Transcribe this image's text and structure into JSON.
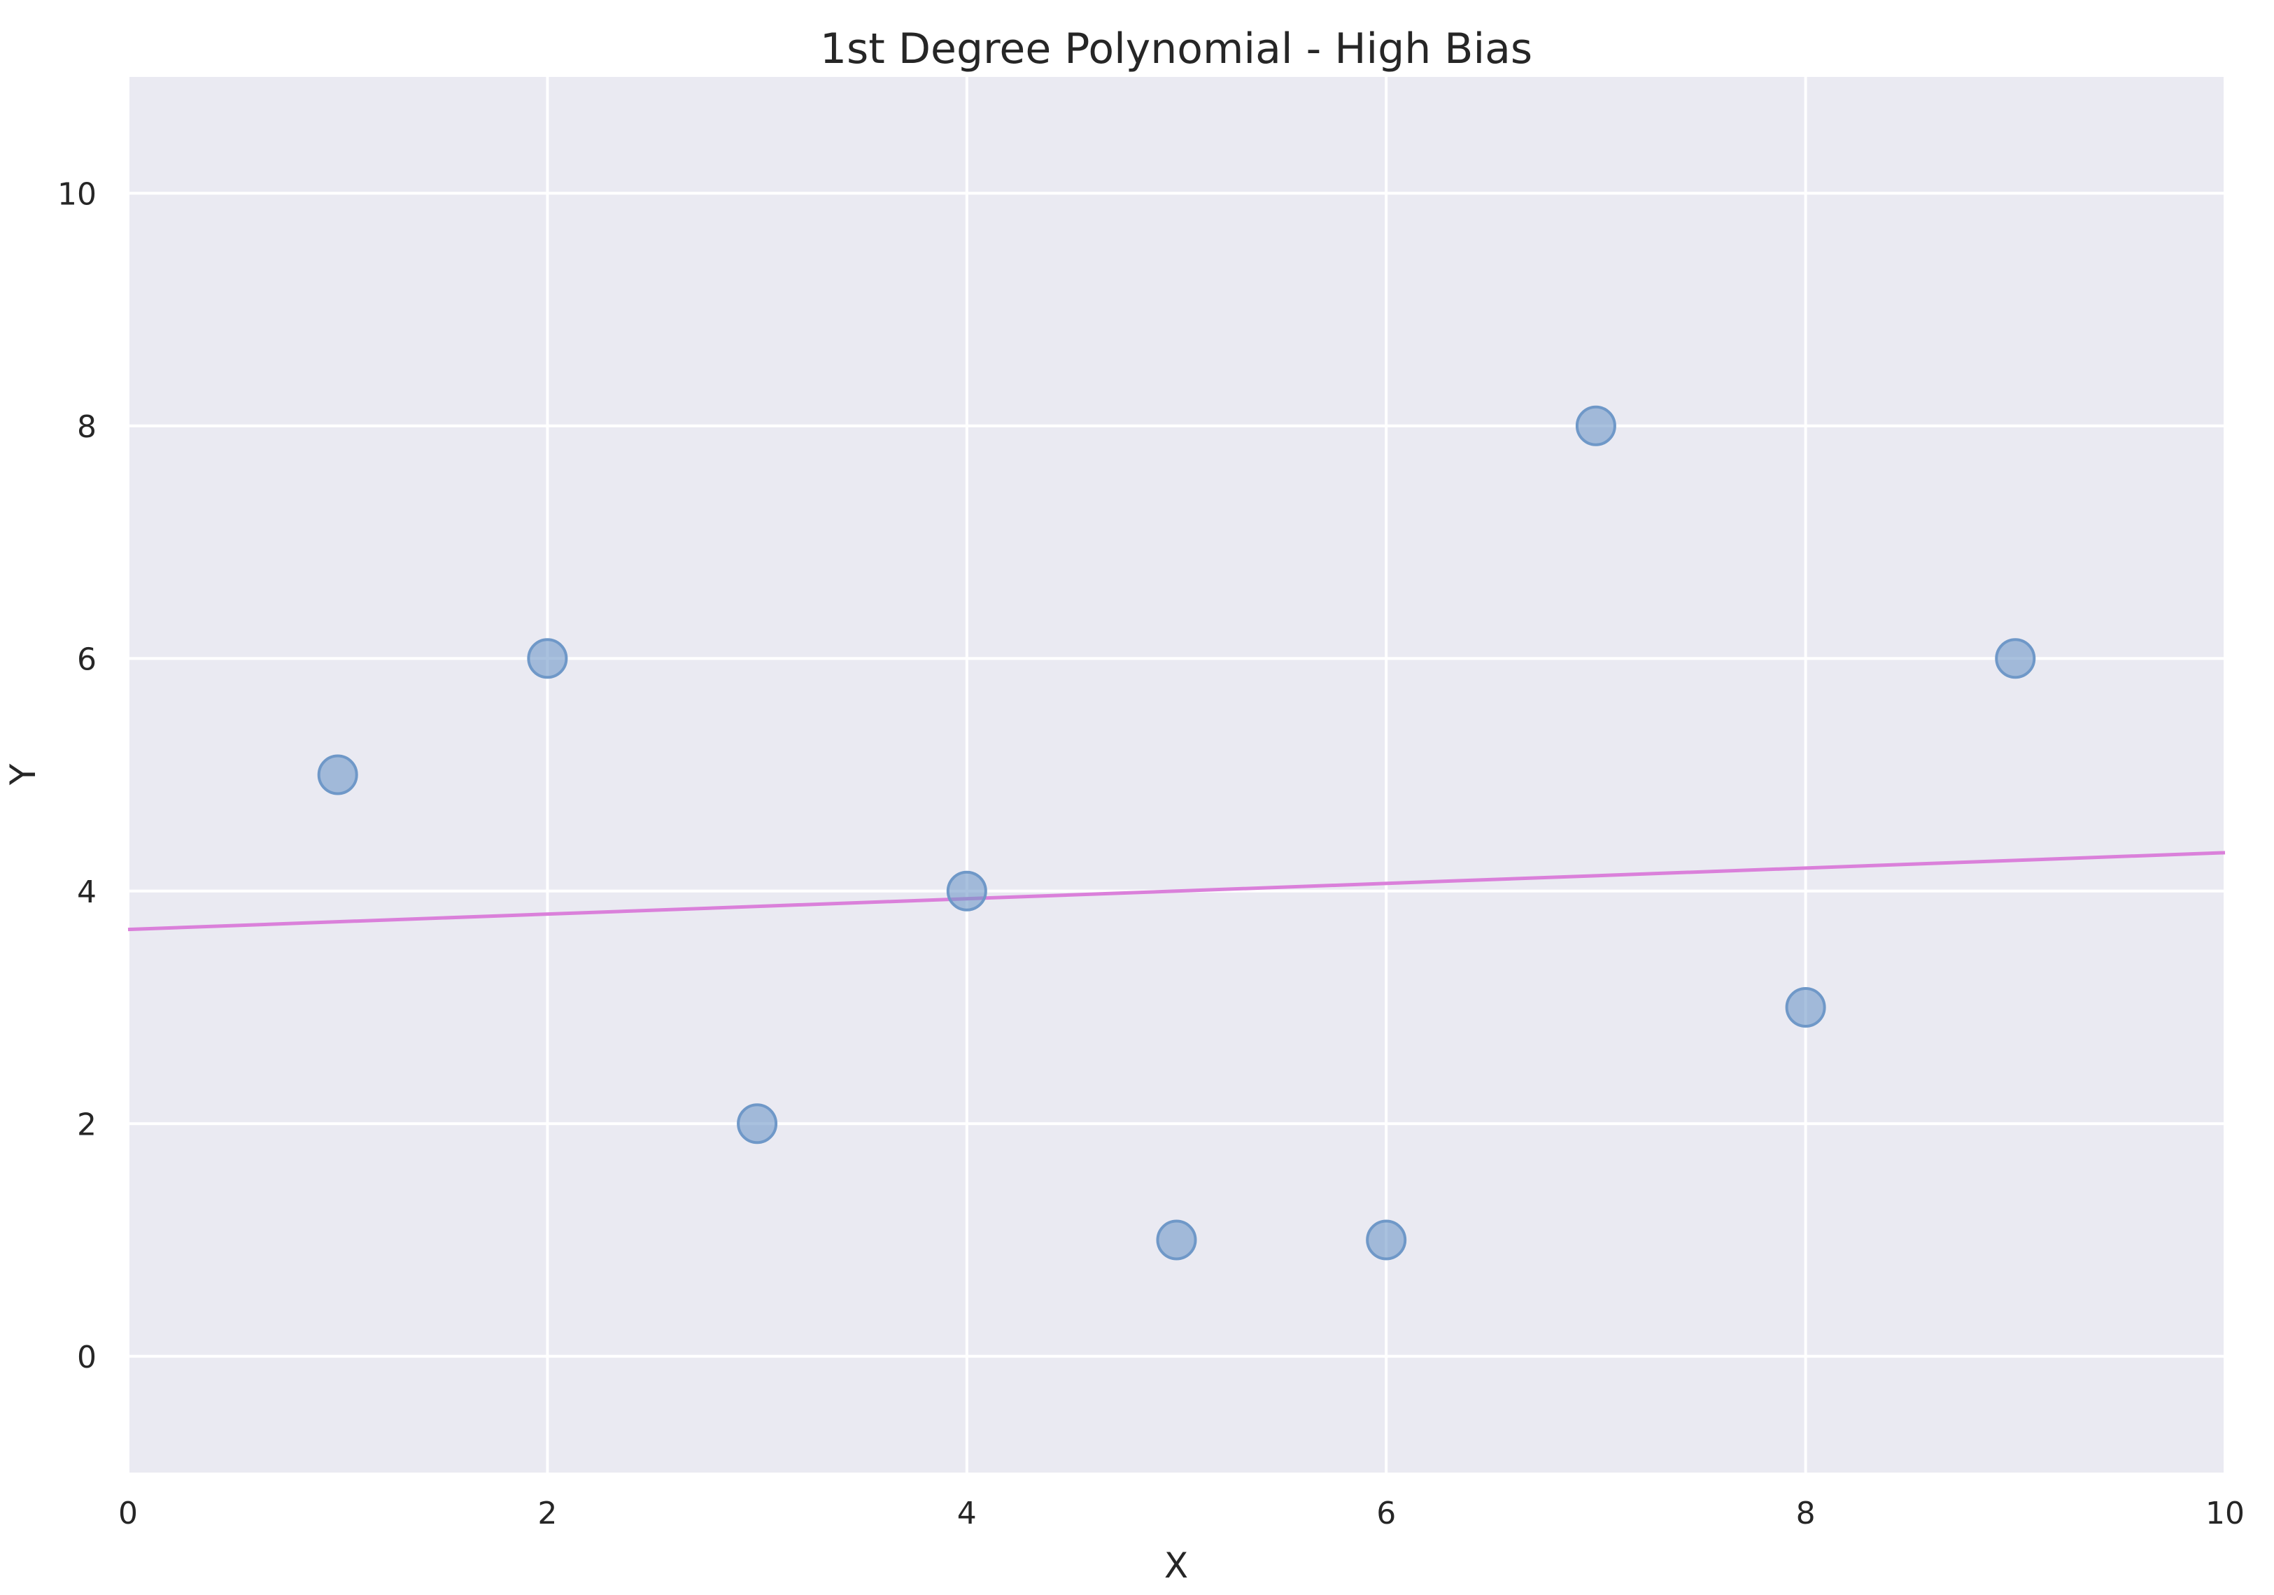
{
  "chart_data": {
    "type": "scatter",
    "title": "1st Degree Polynomial - High Bias",
    "xlabel": "X",
    "ylabel": "Y",
    "xlim": [
      0,
      10
    ],
    "ylim": [
      -1,
      11
    ],
    "xticks": [
      0,
      2,
      4,
      6,
      8,
      10
    ],
    "yticks": [
      0,
      2,
      4,
      6,
      8,
      10
    ],
    "grid": true,
    "series": [
      {
        "kind": "scatter",
        "x": [
          1,
          2,
          3,
          4,
          5,
          6,
          7,
          8,
          9
        ],
        "y": [
          5,
          6,
          2,
          4,
          1,
          1,
          8,
          3,
          6
        ]
      },
      {
        "kind": "line",
        "x": [
          0,
          10
        ],
        "y": [
          3.67,
          4.33
        ]
      }
    ],
    "colors": {
      "background": "#eaeaf2",
      "grid": "#ffffff",
      "points": "#6f98c8",
      "fit_line": "#da80da"
    }
  }
}
